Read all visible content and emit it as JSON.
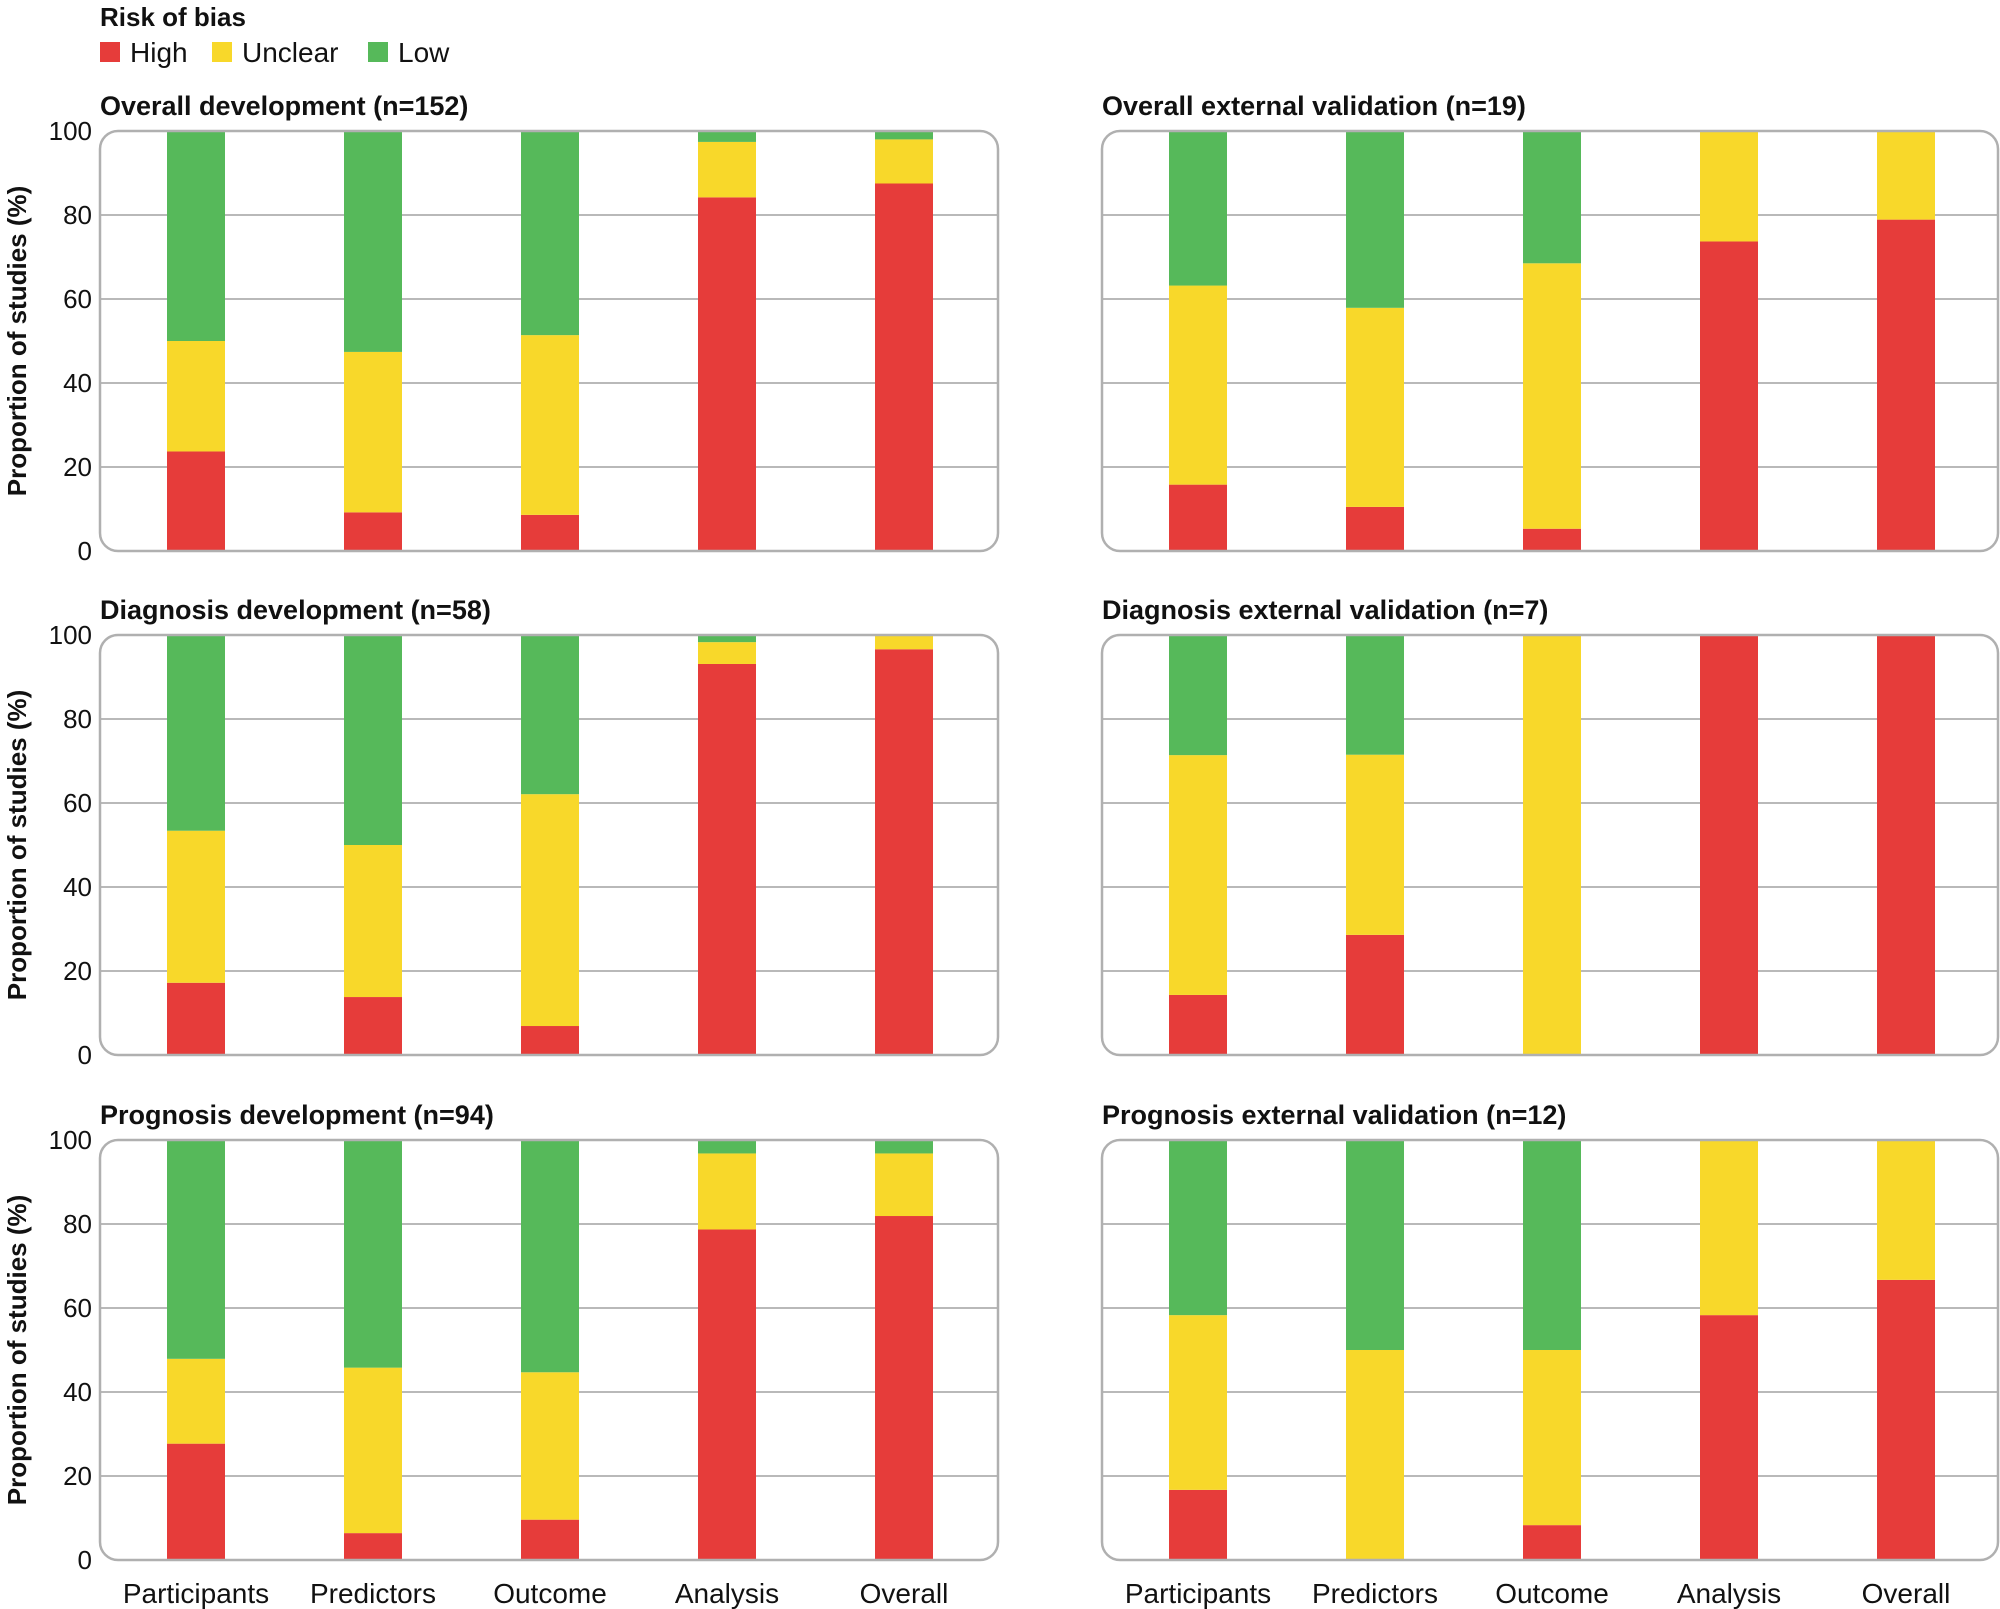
{
  "chart_data": {
    "type": "bar",
    "stacked": true,
    "legend": {
      "title": "Risk of bias",
      "entries": [
        {
          "key": "high",
          "label": "High",
          "color": "#e63c3a"
        },
        {
          "key": "unclear",
          "label": "Unclear",
          "color": "#f8d82a"
        },
        {
          "key": "low",
          "label": "Low",
          "color": "#56b95a"
        }
      ],
      "placement": "top-left"
    },
    "ylabel": "Proportion of studies (%)",
    "ylim": [
      0,
      100
    ],
    "yticks": [
      "0",
      "20",
      "40",
      "60",
      "80",
      "100"
    ],
    "categories": [
      "Participants",
      "Predictors",
      "Outcome",
      "Analysis",
      "Overall"
    ],
    "panels": [
      {
        "title": "Overall development (n=152)",
        "series": [
          {
            "name": "High",
            "values": [
              23.7,
              9.2,
              8.6,
              84.2,
              87.5
            ]
          },
          {
            "name": "Unclear",
            "values": [
              26.3,
              38.2,
              42.8,
              13.2,
              10.5
            ]
          },
          {
            "name": "Low",
            "values": [
              50.0,
              52.6,
              48.6,
              2.6,
              2.0
            ]
          }
        ]
      },
      {
        "title": "Overall external validation (n=19)",
        "series": [
          {
            "name": "High",
            "values": [
              15.8,
              10.5,
              5.3,
              73.7,
              78.9
            ]
          },
          {
            "name": "Unclear",
            "values": [
              47.4,
              47.4,
              63.2,
              26.3,
              21.1
            ]
          },
          {
            "name": "Low",
            "values": [
              36.8,
              42.1,
              31.5,
              0,
              0
            ]
          }
        ]
      },
      {
        "title": "Diagnosis development (n=58)",
        "series": [
          {
            "name": "High",
            "values": [
              17.2,
              13.8,
              6.9,
              93.1,
              96.6
            ]
          },
          {
            "name": "Unclear",
            "values": [
              36.2,
              36.2,
              55.2,
              5.2,
              3.4
            ]
          },
          {
            "name": "Low",
            "values": [
              46.6,
              50.0,
              37.9,
              1.7,
              0
            ]
          }
        ]
      },
      {
        "title": "Diagnosis external validation (n=7)",
        "series": [
          {
            "name": "High",
            "values": [
              14.3,
              28.6,
              0,
              100,
              100
            ]
          },
          {
            "name": "Unclear",
            "values": [
              57.1,
              42.9,
              100,
              0,
              0
            ]
          },
          {
            "name": "Low",
            "values": [
              28.6,
              28.5,
              0,
              0,
              0
            ]
          }
        ]
      },
      {
        "title": "Prognosis development (n=94)",
        "series": [
          {
            "name": "High",
            "values": [
              27.7,
              6.4,
              9.6,
              78.7,
              81.9
            ]
          },
          {
            "name": "Unclear",
            "values": [
              20.2,
              39.4,
              35.1,
              18.1,
              14.9
            ]
          },
          {
            "name": "Low",
            "values": [
              52.1,
              54.2,
              55.3,
              3.2,
              3.2
            ]
          }
        ]
      },
      {
        "title": "Prognosis external validation (n=12)",
        "series": [
          {
            "name": "High",
            "values": [
              16.7,
              0,
              8.3,
              58.3,
              66.7
            ]
          },
          {
            "name": "Unclear",
            "values": [
              41.6,
              50.0,
              41.7,
              41.7,
              33.3
            ]
          },
          {
            "name": "Low",
            "values": [
              41.7,
              50.0,
              50.0,
              0,
              0
            ]
          }
        ]
      }
    ]
  }
}
